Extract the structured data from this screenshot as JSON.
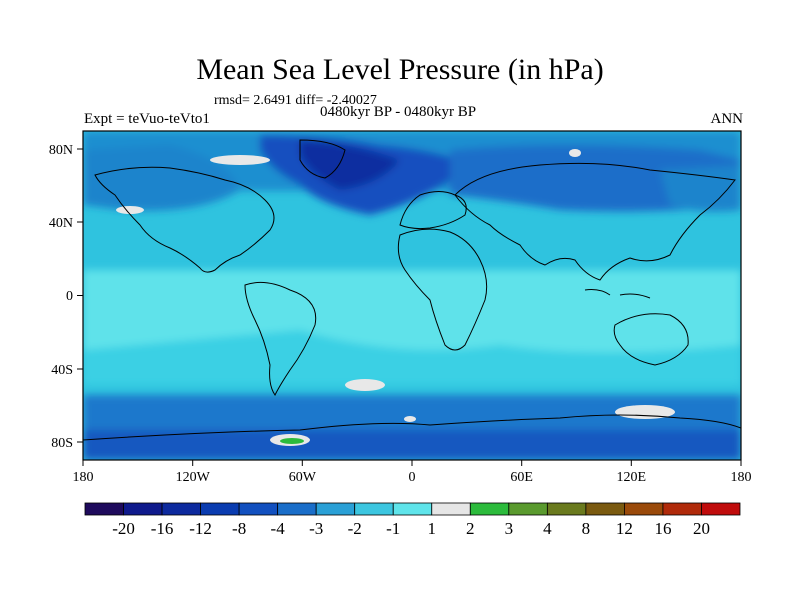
{
  "header": {
    "title": "Mean Sea Level Pressure (in hPa)",
    "stats": "rmsd= 2.6491 diff= -2.40027",
    "experiment": "Expt = teVuo-teVto1",
    "period": "0480kyr BP - 0480kyr BP",
    "season": "ANN"
  },
  "map": {
    "projection": "cylindrical-equidistant",
    "lon_range": [
      -180,
      180
    ],
    "lat_range": [
      -90,
      90
    ],
    "lon_ticks": [
      "180",
      "120W",
      "60W",
      "0",
      "60E",
      "120E",
      "180"
    ],
    "lat_ticks": [
      "80N",
      "40N",
      "0",
      "40S",
      "80S"
    ],
    "field_description": "MSLP difference, mostly negative (-1 to -4 hPa) over oceans and low latitudes, -8 to -12 hPa over North Atlantic/Arctic, small positive patches near Antarctica"
  },
  "colorbar": {
    "labels": [
      "-20",
      "-16",
      "-12",
      "-8",
      "-4",
      "-3",
      "-2",
      "-1",
      "1",
      "2",
      "3",
      "4",
      "8",
      "12",
      "16",
      "20"
    ],
    "colors": [
      "#1e0a5c",
      "#0f1a8c",
      "#0d2a9e",
      "#0a3cb0",
      "#1250bf",
      "#1a6ec9",
      "#2aa0d6",
      "#3cc6e0",
      "#5fe4ea",
      "#e6e6e6",
      "#2cbb3c",
      "#5a9a2e",
      "#6a7a1e",
      "#7a5a10",
      "#9a4a0a",
      "#b02a0a",
      "#c00c0c"
    ]
  },
  "colors": {
    "background": "#ffffff",
    "coast": "#000000"
  }
}
